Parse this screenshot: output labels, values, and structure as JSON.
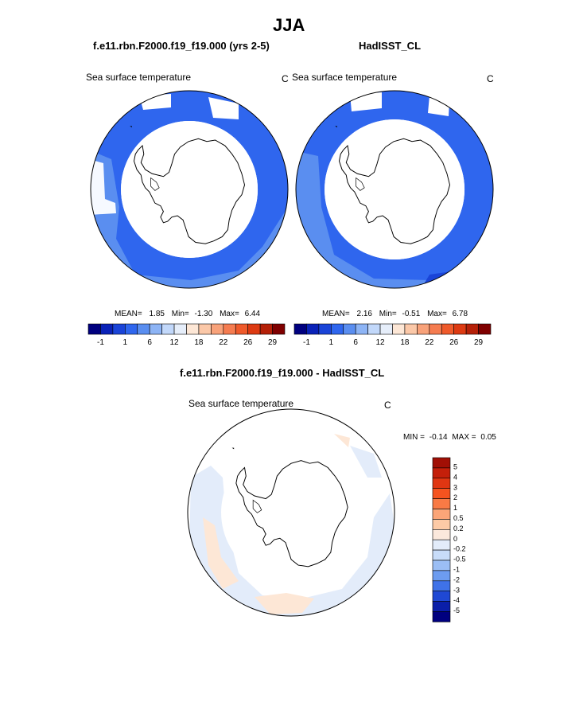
{
  "title": "JJA",
  "panel_left": {
    "case_name": "f.e11.rbn.F2000.f19_f19.000 (yrs 2-5)",
    "variable": "Sea surface temperature",
    "units": "C",
    "stats": {
      "mean_label": "MEAN=",
      "mean": "1.85",
      "min_label": "Min=",
      "min": "-1.30",
      "max_label": "Max=",
      "max": "6.44"
    }
  },
  "panel_right": {
    "case_name": "HadISST_CL",
    "variable": "Sea surface temperature",
    "units": "C",
    "stats": {
      "mean_label": "MEAN=",
      "mean": "2.16",
      "min_label": "Min=",
      "min": "-0.51",
      "max_label": "Max=",
      "max": "6.78"
    }
  },
  "horizontal_colorbar": {
    "tick_labels": [
      "-1",
      "1",
      "6",
      "12",
      "18",
      "22",
      "26",
      "29"
    ],
    "colors": [
      "#00007f",
      "#0a22b8",
      "#1a44d8",
      "#2f66ee",
      "#5a8ef0",
      "#8db4f5",
      "#c2d8fa",
      "#e6eefa",
      "#fde7d6",
      "#fbc8a8",
      "#f8a27a",
      "#f57c50",
      "#ef5a2b",
      "#dd3a12",
      "#b52008",
      "#7f0000"
    ]
  },
  "diff_panel": {
    "title": "f.e11.rbn.F2000.f19_f19.000 - HadISST_CL",
    "variable": "Sea surface temperature",
    "units": "C",
    "minmax": {
      "min_label": "MIN =",
      "min": "-0.14",
      "max_label": "MAX =",
      "max": "0.05"
    }
  },
  "vertical_colorbar": {
    "labels": [
      "5",
      "4",
      "3",
      "2",
      "1",
      "0.5",
      "0.2",
      "0",
      "-0.2",
      "-0.5",
      "-1",
      "-2",
      "-3",
      "-4",
      "-5"
    ],
    "colors": [
      "#a10f05",
      "#c41f0a",
      "#e03612",
      "#f5531f",
      "#f97a45",
      "#fba578",
      "#fdcaa6",
      "#fbe8dc",
      "#e3ecfa",
      "#c8dcf9",
      "#9bbef5",
      "#6d9cf0",
      "#3f72e8",
      "#1f48d4",
      "#0a1ea8",
      "#00007f"
    ]
  }
}
